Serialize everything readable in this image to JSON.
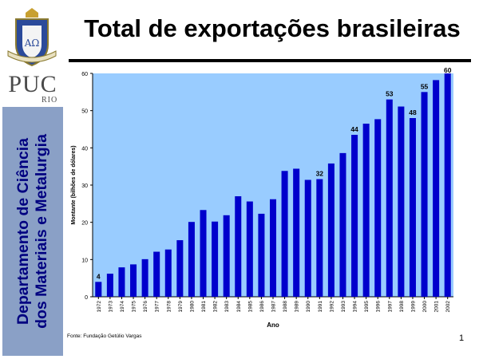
{
  "title": "Total de exportações brasileiras",
  "logo": {
    "puc_text": "PUC",
    "rio_text": "RIO"
  },
  "sidebar": {
    "line1": "Departamento de Ciência",
    "line2": "dos Materiais e Metalurgia"
  },
  "footer": {
    "source": "Fonte: Fundação Getúlio Vargas",
    "page_number": "1"
  },
  "colors": {
    "plot_bg": "#99ccff",
    "bar": "#0000cc",
    "dept_box": "#8aa0c6",
    "dept_text": "#000080"
  },
  "chart_data": {
    "type": "bar",
    "xlabel": "Ano",
    "ylabel": "Montante (bilhões de dólares)",
    "ylim": [
      0,
      60
    ],
    "yticks": [
      0,
      10,
      20,
      30,
      40,
      50,
      60
    ],
    "grid": false,
    "categories": [
      "1972",
      "1973",
      "1974",
      "1975",
      "1976",
      "1977",
      "1978",
      "1979",
      "1980",
      "1981",
      "1982",
      "1983",
      "1984",
      "1985",
      "1986",
      "1987",
      "1988",
      "1989",
      "1990",
      "1991",
      "1992",
      "1993",
      "1994",
      "1995",
      "1996",
      "1997",
      "1998",
      "1999",
      "2000",
      "2001",
      "2002"
    ],
    "values": [
      4,
      6.2,
      7.9,
      8.7,
      10.1,
      12.1,
      12.7,
      15.2,
      20.1,
      23.3,
      20.2,
      21.9,
      27.0,
      25.6,
      22.3,
      26.2,
      33.8,
      34.4,
      31.4,
      31.6,
      35.8,
      38.6,
      43.5,
      46.5,
      47.7,
      53,
      51.1,
      48,
      55,
      58.2,
      60
    ],
    "data_labels": [
      {
        "category": "1972",
        "text": "4"
      },
      {
        "category": "1991",
        "text": "32"
      },
      {
        "category": "1994",
        "text": "44"
      },
      {
        "category": "1997",
        "text": "53"
      },
      {
        "category": "1999",
        "text": "48"
      },
      {
        "category": "2000",
        "text": "55"
      },
      {
        "category": "2002",
        "text": "60"
      }
    ]
  }
}
